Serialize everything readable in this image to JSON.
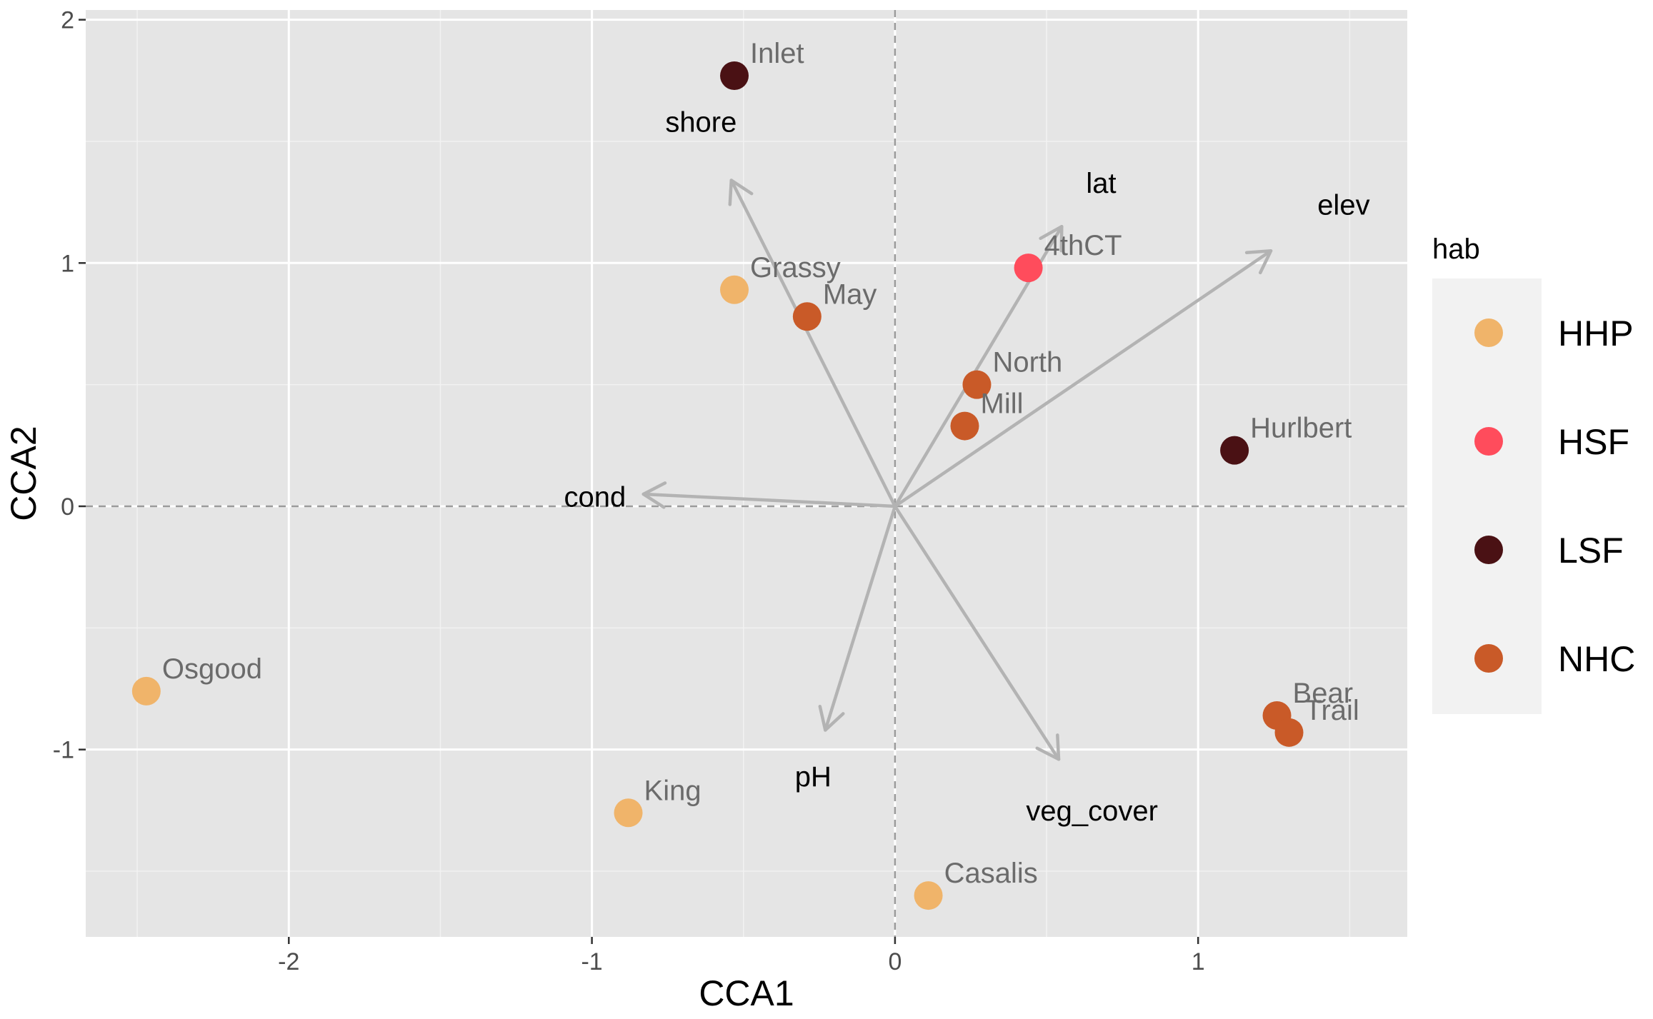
{
  "chart_data": {
    "type": "scatter",
    "xlabel": "CCA1",
    "ylabel": "CCA2",
    "xlim": [
      -2.67,
      1.69
    ],
    "ylim": [
      -1.77,
      2.04
    ],
    "x_ticks": [
      -2,
      -1,
      0,
      1
    ],
    "x_tick_labels": [
      "-2",
      "-1",
      "0",
      "1"
    ],
    "y_ticks": [
      -1,
      0,
      1,
      2
    ],
    "y_tick_labels": [
      "-1",
      "0",
      "1",
      "2"
    ],
    "grid": true,
    "reference_lines": {
      "x": 0,
      "y": 0,
      "style": "dashed"
    },
    "background": "#e5e5e5",
    "legend": {
      "title": "hab",
      "placement": "right",
      "items": [
        {
          "name": "HHP",
          "color": "#f0b46a"
        },
        {
          "name": "HSF",
          "color": "#ff4c5c"
        },
        {
          "name": "LSF",
          "color": "#4a1114"
        },
        {
          "name": "NHC",
          "color": "#c95a28"
        }
      ]
    },
    "points": [
      {
        "label": "Inlet",
        "x": -0.53,
        "y": 1.77,
        "hab": "LSF"
      },
      {
        "label": "Grassy",
        "x": -0.53,
        "y": 0.89,
        "hab": "HHP"
      },
      {
        "label": "May",
        "x": -0.29,
        "y": 0.78,
        "hab": "NHC"
      },
      {
        "label": "4thCT",
        "x": 0.44,
        "y": 0.98,
        "hab": "HSF"
      },
      {
        "label": "North",
        "x": 0.27,
        "y": 0.5,
        "hab": "NHC"
      },
      {
        "label": "Mill",
        "x": 0.23,
        "y": 0.33,
        "hab": "NHC"
      },
      {
        "label": "Hurlbert",
        "x": 1.12,
        "y": 0.23,
        "hab": "LSF"
      },
      {
        "label": "Osgood",
        "x": -2.47,
        "y": -0.76,
        "hab": "HHP"
      },
      {
        "label": "King",
        "x": -0.88,
        "y": -1.26,
        "hab": "HHP"
      },
      {
        "label": "Casalis",
        "x": 0.11,
        "y": -1.6,
        "hab": "HHP"
      },
      {
        "label": "Bear",
        "x": 1.26,
        "y": -0.86,
        "hab": "NHC"
      },
      {
        "label": "Trail",
        "x": 1.3,
        "y": -0.93,
        "hab": "NHC"
      }
    ],
    "vectors": [
      {
        "label": "shore",
        "x": -0.54,
        "y": 1.34
      },
      {
        "label": "lat",
        "x": 0.55,
        "y": 1.15
      },
      {
        "label": "elev",
        "x": 1.24,
        "y": 1.05
      },
      {
        "label": "cond",
        "x": -0.83,
        "y": 0.05
      },
      {
        "label": "pH",
        "x": -0.23,
        "y": -0.92
      },
      {
        "label": "veg_cover",
        "x": 0.54,
        "y": -1.04
      }
    ],
    "vector_label_positions": [
      {
        "label": "shore",
        "x": -0.64,
        "y": 1.58
      },
      {
        "label": "lat",
        "x": 0.68,
        "y": 1.33
      },
      {
        "label": "elev",
        "x": 1.48,
        "y": 1.24
      },
      {
        "label": "cond",
        "x": -0.99,
        "y": 0.04
      },
      {
        "label": "pH",
        "x": -0.27,
        "y": -1.11
      },
      {
        "label": "veg_cover",
        "x": 0.65,
        "y": -1.25
      }
    ]
  }
}
